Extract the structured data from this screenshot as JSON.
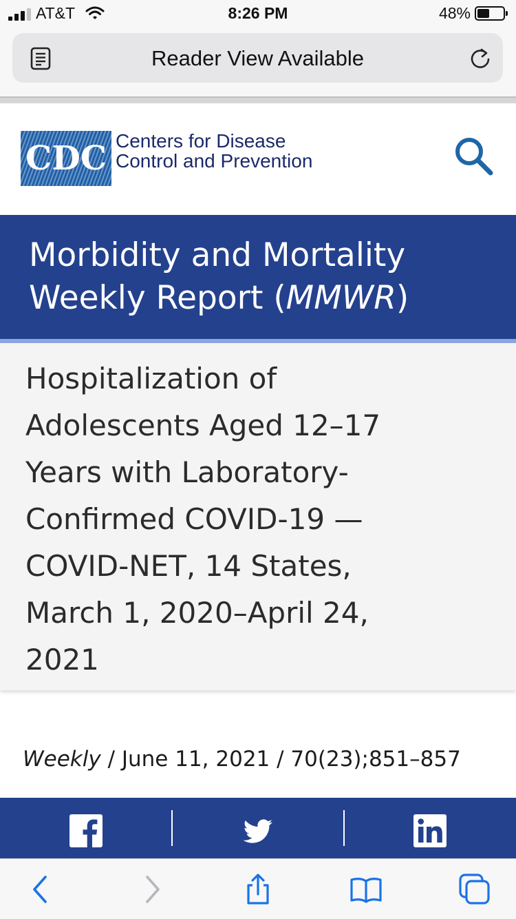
{
  "status_bar": {
    "carrier": "AT&T",
    "time": "8:26 PM",
    "battery_percent": "48%",
    "battery_level": 0.48,
    "signal_bars": 3,
    "icons": [
      "signal-icon",
      "wifi-icon",
      "battery-icon"
    ]
  },
  "url_bar": {
    "text": "Reader View Available",
    "icons": [
      "reader-view-icon",
      "reload-icon"
    ]
  },
  "cdc_header": {
    "logo_text": "CDC",
    "name_line1": "Centers for Disease",
    "name_line2": "Control and Prevention",
    "icons": [
      "search-icon"
    ]
  },
  "mmwr": {
    "title_line1": "Morbidity and Mortality",
    "title_line2_prefix": "Weekly Report (",
    "title_line2_abbrev": "MMWR",
    "title_line2_suffix": ")"
  },
  "article": {
    "title_lines": [
      "Hospitalization of",
      "Adolescents Aged 12–17",
      "Years with Laboratory-",
      "Confirmed COVID-19 —",
      "COVID-NET, 14 States,",
      "March 1, 2020–April 24,",
      "2021"
    ]
  },
  "citation": {
    "type": "Weekly",
    "rest": " / June 11, 2021 / 70(23);851–857"
  },
  "share": {
    "buttons": [
      "facebook-icon",
      "twitter-icon",
      "linkedin-icon"
    ]
  },
  "toolbar": {
    "buttons": [
      "back-icon",
      "forward-icon",
      "share-icon",
      "bookmarks-icon",
      "tabs-icon"
    ]
  },
  "colors": {
    "cdc_blue": "#24418e",
    "stripe": "#8ba5e0",
    "safari_blue": "#1a73e8",
    "search_blue": "#1f66a5"
  }
}
